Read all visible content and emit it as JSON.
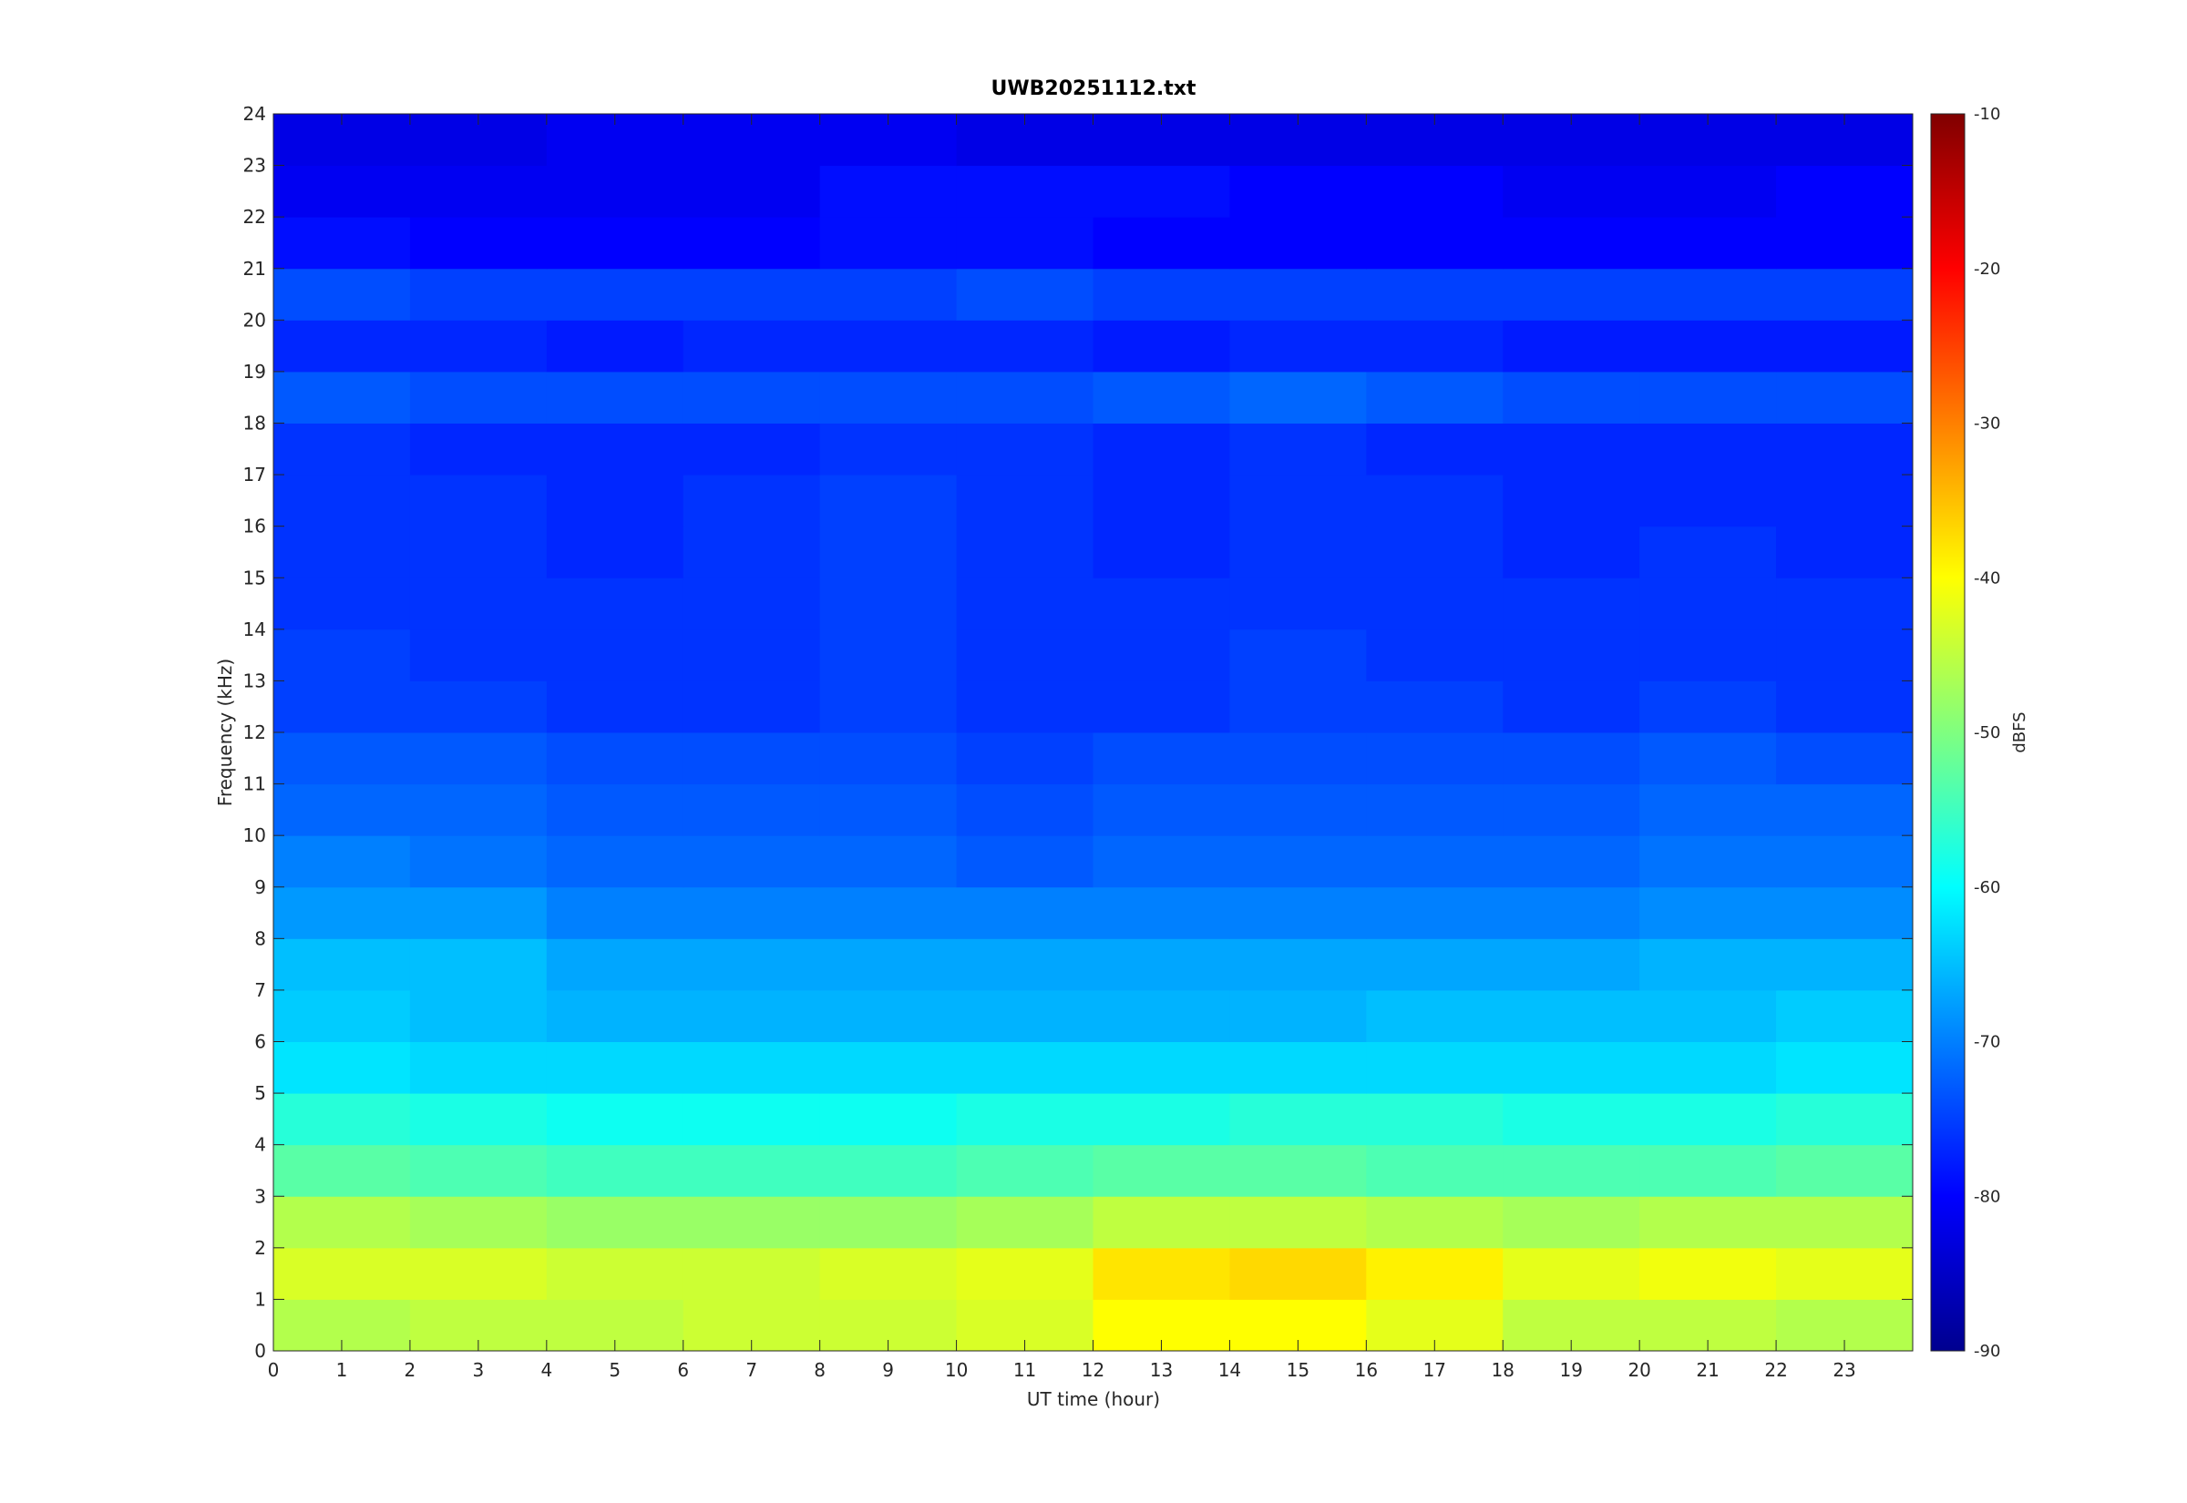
{
  "chart_data": {
    "type": "heatmap",
    "title": "UWB20251112.txt",
    "x_label": "UT time (hour)",
    "y_label": "Frequency (kHz)",
    "colorbar_label": "dBFS",
    "colormap": "jet",
    "xlim": [
      0,
      24
    ],
    "ylim": [
      0,
      24
    ],
    "xticks": [
      0,
      1,
      2,
      3,
      4,
      5,
      6,
      7,
      8,
      9,
      10,
      11,
      12,
      13,
      14,
      15,
      16,
      17,
      18,
      19,
      20,
      21,
      22,
      23
    ],
    "yticks": [
      0,
      1,
      2,
      3,
      4,
      5,
      6,
      7,
      8,
      9,
      10,
      11,
      12,
      13,
      14,
      15,
      16,
      17,
      18,
      19,
      20,
      21,
      22,
      23,
      24
    ],
    "clim": [
      -90,
      -10
    ],
    "cticks": [
      -90,
      -80,
      -70,
      -60,
      -50,
      -40,
      -30,
      -20,
      -10
    ],
    "xbins": [
      0,
      2,
      4,
      6,
      8,
      10,
      12,
      14,
      16,
      18,
      20,
      22,
      24
    ],
    "ybins": [
      0,
      1,
      2,
      3,
      4,
      5,
      6,
      7,
      8,
      9,
      10,
      11,
      12,
      13,
      14,
      15,
      16,
      17,
      18,
      19,
      20,
      21,
      22,
      23,
      24
    ],
    "z": [
      [
        -46,
        -45,
        -45,
        -44,
        -44,
        -43,
        -40,
        -40,
        -42,
        -45,
        -45,
        -46
      ],
      [
        -43,
        -43,
        -44,
        -44,
        -43,
        -42,
        -38,
        -37,
        -39,
        -42,
        -41,
        -42
      ],
      [
        -46,
        -47,
        -48,
        -48,
        -48,
        -47,
        -45,
        -45,
        -46,
        -47,
        -46,
        -46
      ],
      [
        -53,
        -54,
        -55,
        -55,
        -55,
        -54,
        -53,
        -53,
        -54,
        -54,
        -54,
        -53
      ],
      [
        -57,
        -58,
        -59,
        -59,
        -59,
        -58,
        -58,
        -57,
        -57,
        -58,
        -58,
        -57
      ],
      [
        -62,
        -63,
        -63,
        -63,
        -63,
        -63,
        -63,
        -63,
        -63,
        -63,
        -63,
        -62
      ],
      [
        -64,
        -65,
        -66,
        -66,
        -66,
        -66,
        -66,
        -66,
        -65,
        -65,
        -65,
        -64
      ],
      [
        -65,
        -65,
        -67,
        -67,
        -67,
        -67,
        -67,
        -67,
        -67,
        -67,
        -66,
        -66
      ],
      [
        -68,
        -68,
        -70,
        -70,
        -70,
        -70,
        -70,
        -70,
        -70,
        -70,
        -69,
        -69
      ],
      [
        -70,
        -71,
        -72,
        -72,
        -72,
        -73,
        -72,
        -72,
        -72,
        -72,
        -71,
        -71
      ],
      [
        -72,
        -72,
        -73,
        -73,
        -73,
        -74,
        -73,
        -73,
        -73,
        -73,
        -72,
        -72
      ],
      [
        -73,
        -73,
        -74,
        -74,
        -74,
        -75,
        -74,
        -74,
        -74,
        -74,
        -73,
        -74
      ],
      [
        -75,
        -75,
        -76,
        -76,
        -75,
        -76,
        -76,
        -75,
        -75,
        -76,
        -75,
        -76
      ],
      [
        -75,
        -76,
        -76,
        -76,
        -75,
        -76,
        -76,
        -75,
        -76,
        -76,
        -76,
        -76
      ],
      [
        -76,
        -76,
        -76,
        -76,
        -75,
        -76,
        -76,
        -76,
        -76,
        -76,
        -76,
        -76
      ],
      [
        -76,
        -76,
        -77,
        -76,
        -75,
        -76,
        -77,
        -76,
        -76,
        -77,
        -76,
        -77
      ],
      [
        -76,
        -76,
        -77,
        -76,
        -75,
        -76,
        -77,
        -76,
        -76,
        -77,
        -77,
        -77
      ],
      [
        -76,
        -77,
        -77,
        -77,
        -76,
        -76,
        -77,
        -76,
        -77,
        -77,
        -77,
        -77
      ],
      [
        -73,
        -74,
        -74,
        -74,
        -74,
        -74,
        -73,
        -72,
        -73,
        -74,
        -74,
        -74
      ],
      [
        -77,
        -77,
        -78,
        -77,
        -77,
        -77,
        -78,
        -77,
        -77,
        -78,
        -78,
        -78
      ],
      [
        -74,
        -75,
        -75,
        -75,
        -75,
        -74,
        -75,
        -75,
        -75,
        -75,
        -75,
        -75
      ],
      [
        -79,
        -80,
        -80,
        -80,
        -79,
        -79,
        -80,
        -80,
        -80,
        -80,
        -80,
        -80
      ],
      [
        -81,
        -81,
        -81,
        -81,
        -79,
        -79,
        -79,
        -80,
        -80,
        -81,
        -81,
        -80
      ],
      [
        -82,
        -82,
        -81,
        -81,
        -81,
        -82,
        -82,
        -82,
        -82,
        -82,
        -82,
        -82
      ]
    ]
  }
}
